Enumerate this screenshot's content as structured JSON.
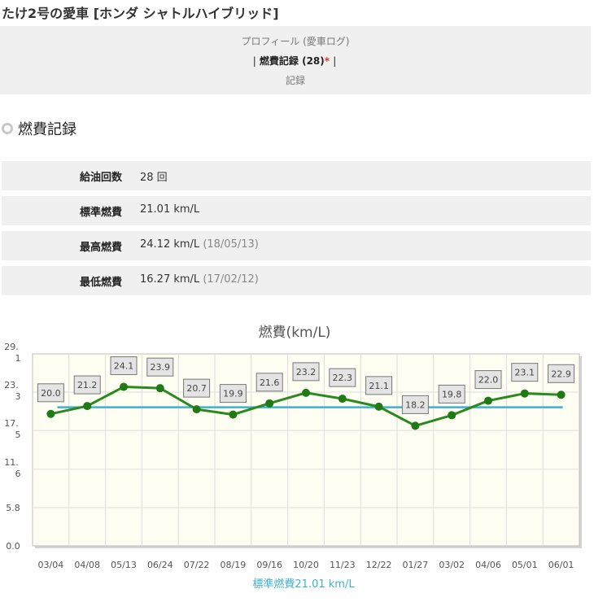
{
  "header": {
    "title_prefix": "たけ2号の愛車",
    "title_car": "[ホンダ シャトルハイブリッド]"
  },
  "nav": {
    "profile_label": "プロフィール (愛車ログ)",
    "sep_left": "|",
    "records_label": "燃費記録 (28)",
    "records_star": "*",
    "sep_right": "|",
    "memo_label": "記録"
  },
  "section": {
    "heading": "燃費記録"
  },
  "stats": [
    {
      "label": "給油回数",
      "value": "28 回",
      "date": ""
    },
    {
      "label": "標準燃費",
      "value": "21.01 km/L",
      "date": ""
    },
    {
      "label": "最高燃費",
      "value": "24.12 km/L",
      "date": "(18/05/13)"
    },
    {
      "label": "最低燃費",
      "value": "16.27 km/L",
      "date": "(17/02/12)"
    }
  ],
  "colors": {
    "line": "#2a8a1f",
    "point": "#1f7a16",
    "average": "#3fb1cf",
    "plot_bg": "#fffef3",
    "grid": "#dddddd"
  },
  "chart_data": {
    "type": "line",
    "title": "燃費(km/L)",
    "categories": [
      "03/04",
      "04/08",
      "05/13",
      "06/24",
      "07/22",
      "08/19",
      "09/16",
      "10/20",
      "11/23",
      "12/22",
      "01/27",
      "03/02",
      "04/06",
      "05/01",
      "06/01"
    ],
    "series": [
      {
        "values": [
          20.0,
          21.2,
          24.1,
          23.9,
          20.7,
          19.9,
          21.6,
          23.2,
          22.3,
          21.1,
          18.2,
          19.8,
          22.0,
          23.1,
          22.9
        ]
      }
    ],
    "data_labels": [
      "20.0",
      "21.2",
      "24.1",
      "23.9",
      "20.7",
      "19.9",
      "21.6",
      "23.2",
      "22.3",
      "21.1",
      "18.2",
      "19.8",
      "22.0",
      "23.1",
      "22.9"
    ],
    "average_value": 21.01,
    "legend": "標準燃費21.01 km/L",
    "ylim": [
      0,
      29.1
    ],
    "yticks": [
      {
        "value": 29.1,
        "lines": [
          "29.",
          "1"
        ]
      },
      {
        "value": 23.3,
        "lines": [
          "23.",
          "3"
        ]
      },
      {
        "value": 17.5,
        "lines": [
          "17.",
          "5"
        ]
      },
      {
        "value": 11.6,
        "lines": [
          "11.",
          "6"
        ]
      },
      {
        "value": 5.8,
        "lines": [
          "5.8"
        ]
      },
      {
        "value": 0.0,
        "lines": [
          "0.0"
        ]
      }
    ],
    "grid": true
  }
}
